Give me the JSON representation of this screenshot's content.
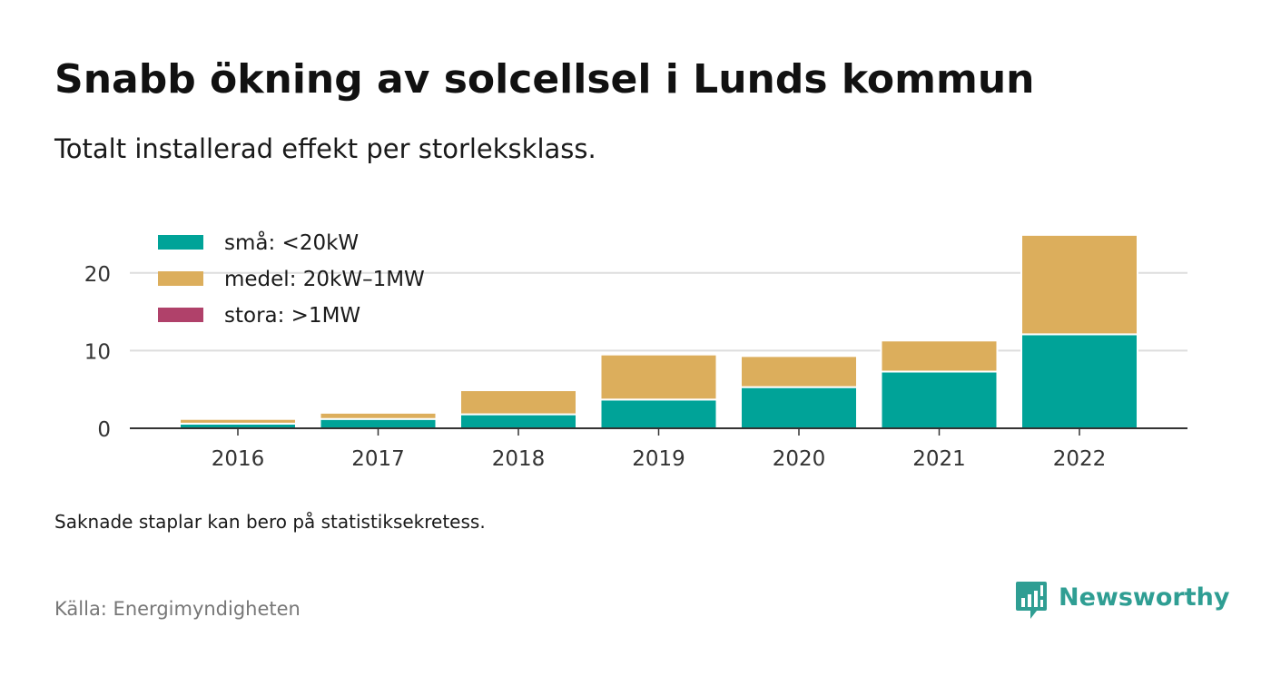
{
  "title": "Snabb ökning av solcellsel i Lunds kommun",
  "subtitle": "Totalt installerad effekt per storleksklass.",
  "note": "Saknade staplar kan bero på statistiksekretess.",
  "source": "Källa: Energimyndigheten",
  "brand": {
    "name": "Newsworthy",
    "color": "#2f9e93",
    "icon": "newsworthy-logo-icon"
  },
  "chart_data": {
    "type": "bar",
    "stacked": true,
    "categories": [
      "2016",
      "2017",
      "2018",
      "2019",
      "2020",
      "2021",
      "2022"
    ],
    "series": [
      {
        "name": "små: <20kW",
        "color": "#00a398",
        "values": [
          0.6,
          1.2,
          1.8,
          3.7,
          5.3,
          7.3,
          12.1
        ]
      },
      {
        "name": "medel: 20kW–1MW",
        "color": "#dcae5c",
        "values": [
          0.6,
          0.8,
          3.1,
          5.8,
          4.0,
          4.0,
          12.8
        ]
      },
      {
        "name": "stora: >1MW",
        "color": "#b0416a",
        "values": [
          0,
          0,
          0,
          0,
          0,
          0,
          0
        ]
      }
    ],
    "y_ticks": [
      0,
      10,
      20
    ],
    "ylim": [
      0,
      25
    ],
    "xlabel": "",
    "ylabel": "",
    "grid": true,
    "legend_position": "top-left"
  }
}
